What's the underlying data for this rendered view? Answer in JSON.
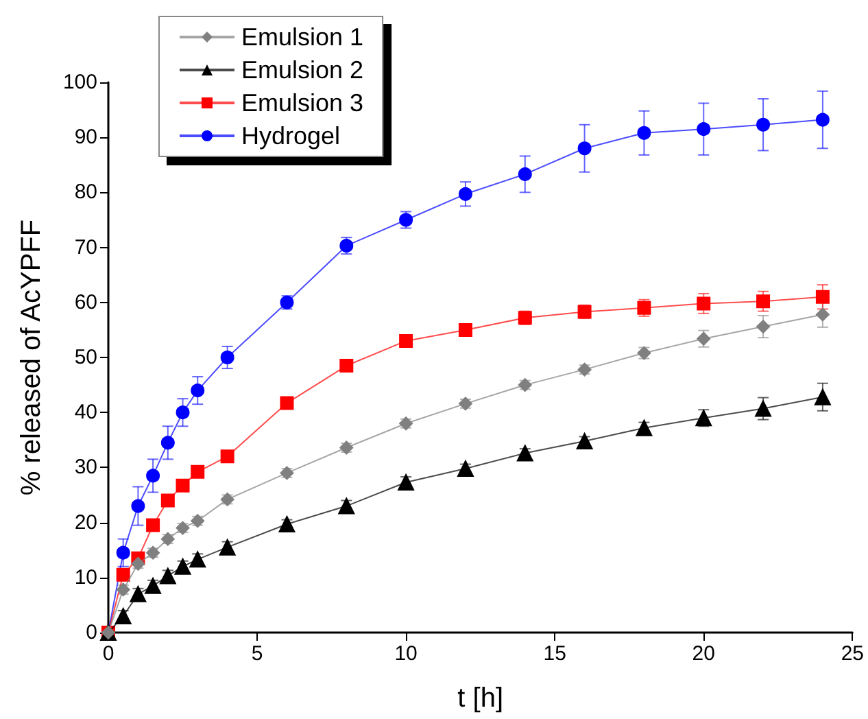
{
  "chart_data": {
    "type": "line",
    "xlabel": "t [h]",
    "ylabel": "% released of AcYPFF",
    "x": [
      0,
      0.5,
      1,
      1.5,
      2,
      2.5,
      3,
      4,
      6,
      8,
      10,
      12,
      14,
      16,
      18,
      20,
      22,
      24
    ],
    "xlim": [
      0,
      25
    ],
    "xticks": [
      0,
      5,
      10,
      15,
      20,
      25
    ],
    "ylim": [
      0,
      100
    ],
    "yticks": [
      0,
      10,
      20,
      30,
      40,
      50,
      60,
      70,
      80,
      90,
      100
    ],
    "grid": false,
    "legend": "top left",
    "line_style": "solid",
    "series": [
      {
        "name": "Emulsion 1",
        "color": "#808080",
        "marker": "diamond",
        "values": [
          0,
          7.8,
          12.5,
          14.5,
          17,
          19,
          20.3,
          24.2,
          29,
          33.6,
          38,
          41.6,
          45,
          47.8,
          50.8,
          53.4,
          55.6,
          57.8
        ],
        "errors": [
          null,
          0.8,
          0.8,
          0.8,
          0.8,
          0.8,
          0.8,
          0.8,
          0.8,
          0.8,
          0.8,
          0.8,
          0.8,
          0.8,
          1,
          1.5,
          2,
          2.3
        ]
      },
      {
        "name": "Emulsion 2",
        "color": "#000000",
        "marker": "triangle",
        "values": [
          0,
          3,
          7,
          8.5,
          10.3,
          12,
          13.3,
          15.5,
          19.7,
          23,
          27.3,
          29.8,
          32.6,
          34.8,
          37.2,
          39,
          40.7,
          42.8
        ],
        "errors": [
          null,
          1,
          1,
          1,
          1,
          1,
          1,
          1,
          0.8,
          1,
          1,
          0.8,
          0.8,
          0.8,
          1,
          1.5,
          2,
          2.5
        ]
      },
      {
        "name": "Emulsion 3",
        "color": "#ff0000",
        "marker": "square",
        "values": [
          0,
          10.5,
          13.5,
          19.5,
          24,
          26.7,
          29.2,
          32,
          41.7,
          48.5,
          53,
          55,
          57.2,
          58.3,
          59,
          59.8,
          60.2,
          61
        ],
        "errors": [
          null,
          1,
          1,
          0.8,
          0.8,
          0.8,
          0.8,
          0.8,
          0.8,
          0.8,
          0.8,
          0.8,
          1.2,
          1.2,
          1.5,
          1.8,
          1.8,
          2.2
        ]
      },
      {
        "name": "Hydrogel",
        "color": "#0000ff",
        "marker": "circle",
        "values": [
          0,
          14.5,
          23,
          28.5,
          34.5,
          40,
          44,
          50,
          60,
          70.3,
          75,
          79.7,
          83.3,
          88,
          90.8,
          91.5,
          92.3,
          93.2
        ],
        "errors": [
          null,
          2.5,
          3.5,
          3,
          3,
          2.5,
          2.5,
          2,
          1.2,
          1.5,
          1.5,
          2.2,
          3.3,
          4.3,
          4,
          4.7,
          4.7,
          5.2
        ]
      }
    ]
  }
}
